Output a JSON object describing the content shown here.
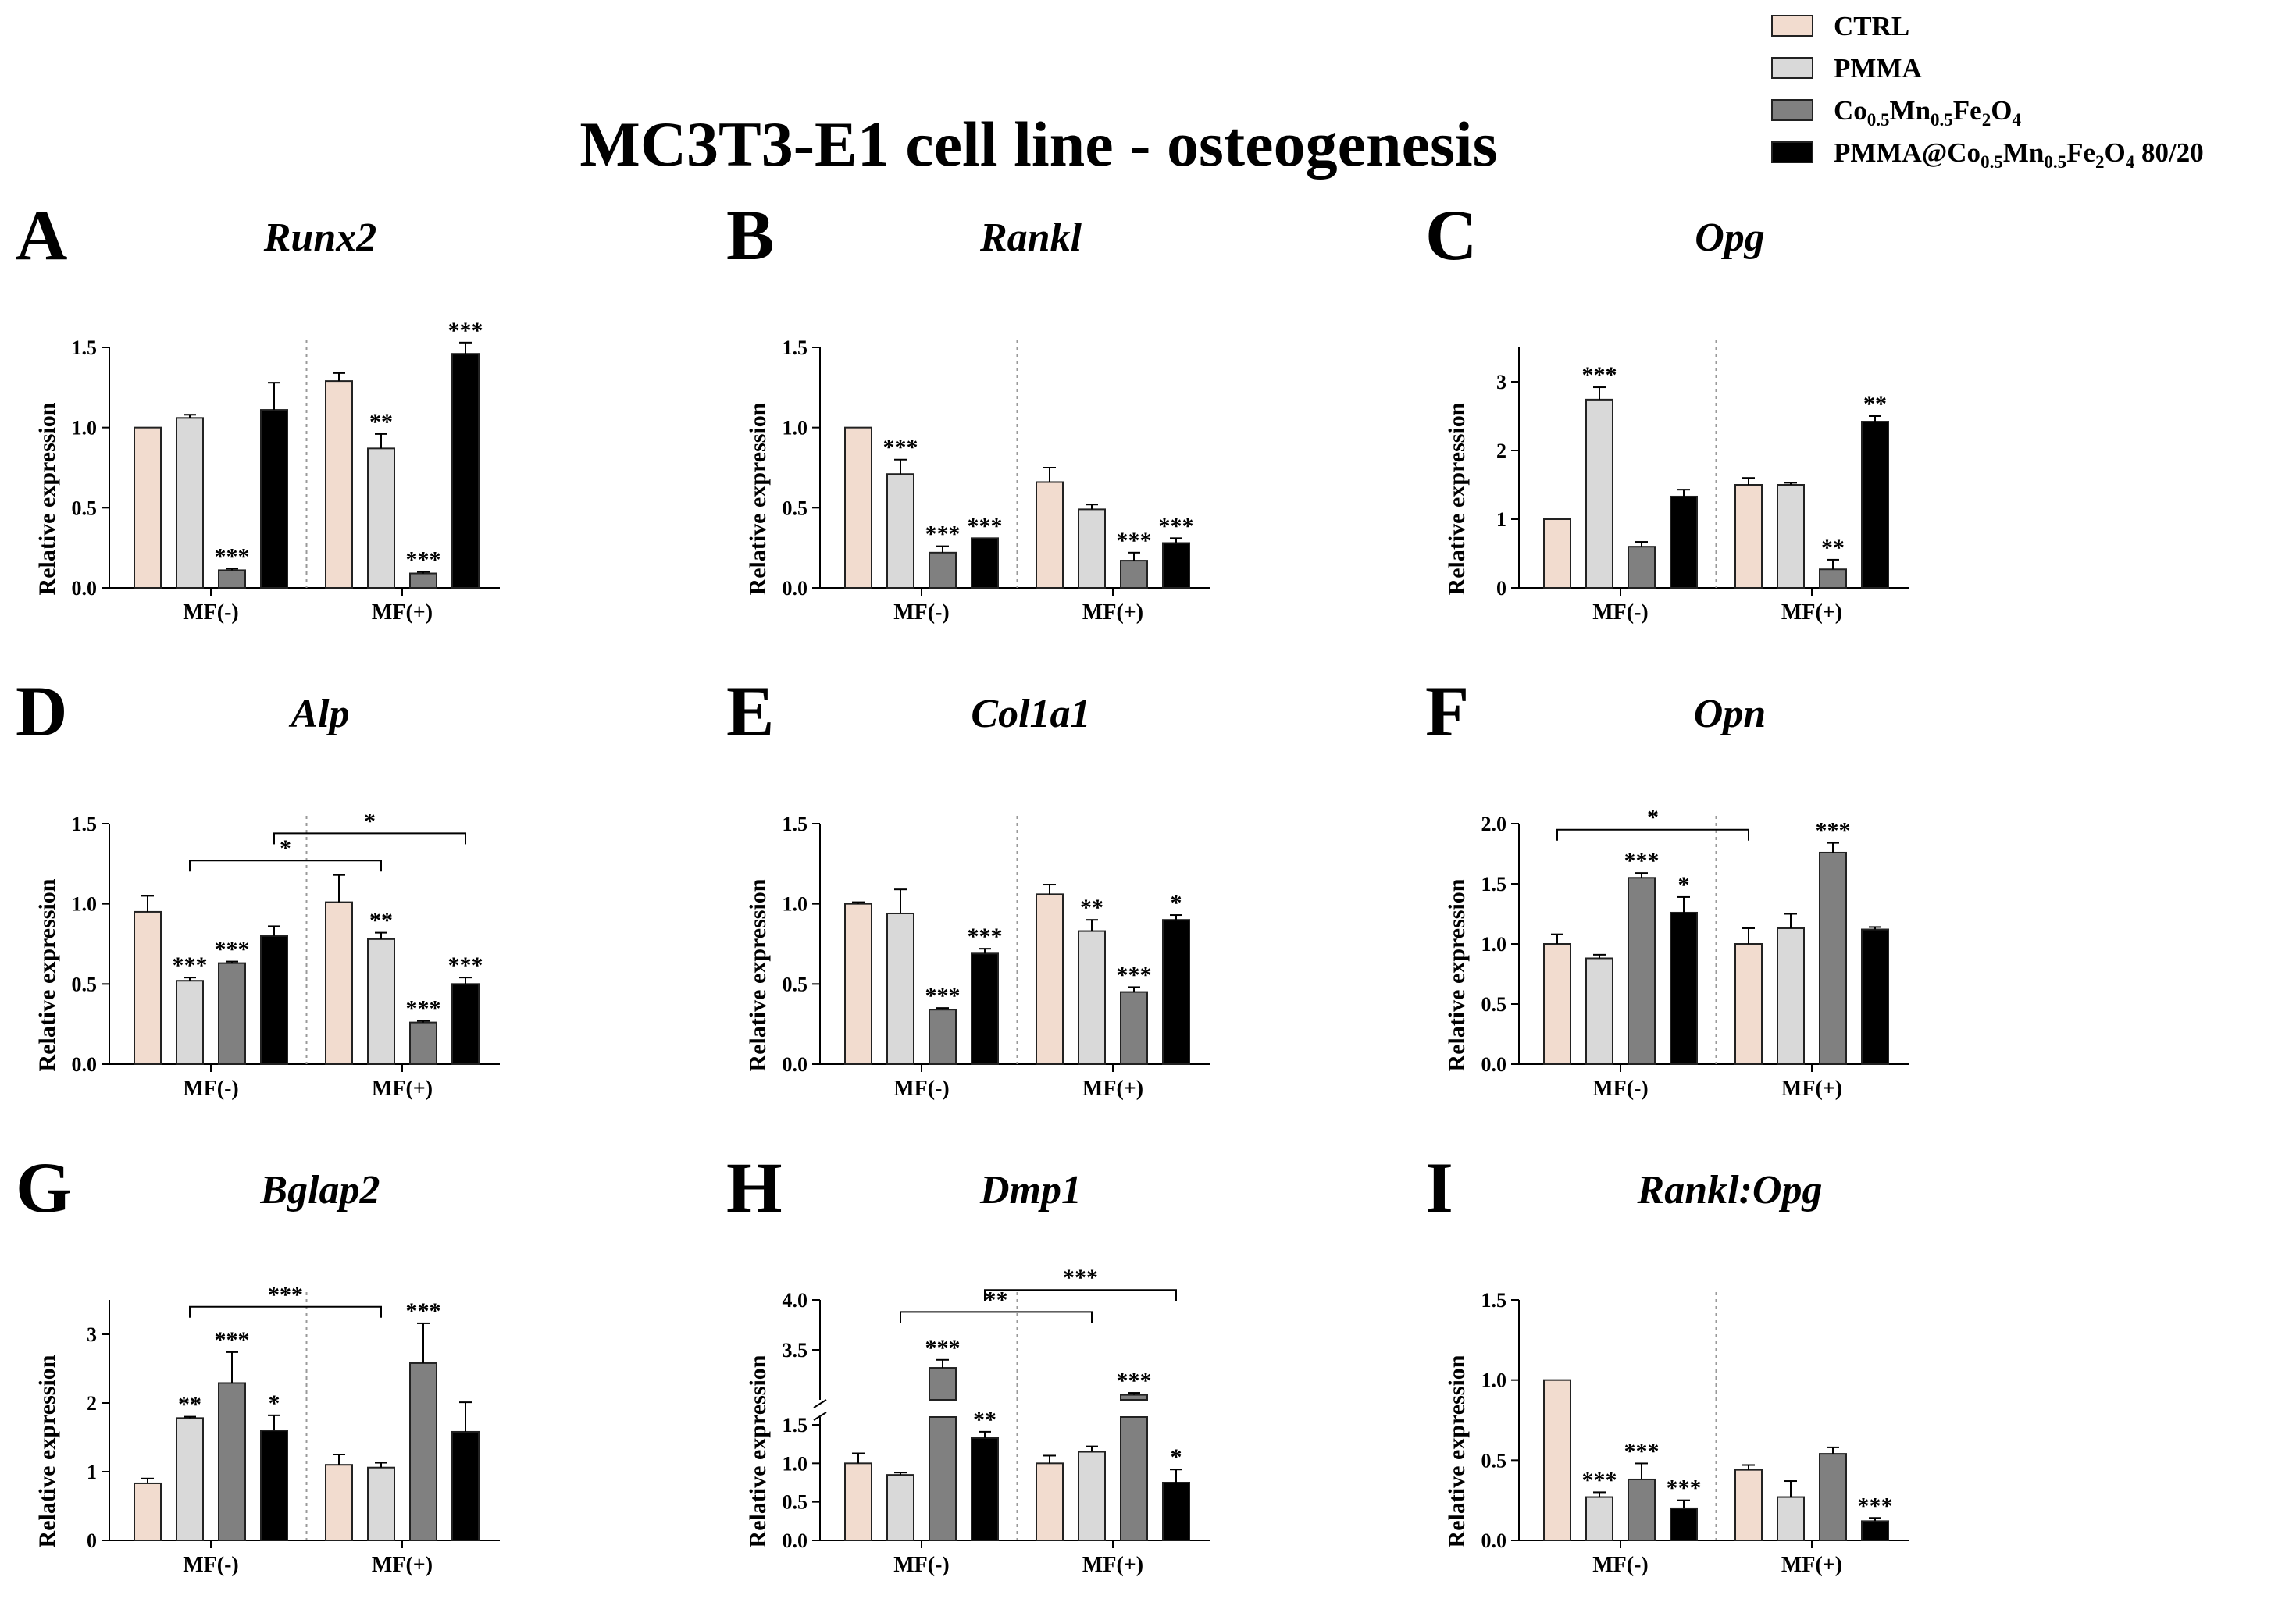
{
  "title": "MC3T3-E1 cell line - osteogenesis",
  "legend": [
    {
      "label": "CTRL",
      "color": "#f2dccf"
    },
    {
      "label": "PMMA",
      "color": "#d9d9d9"
    },
    {
      "label": "Co0.5Mn0.5Fe2O4",
      "color": "#808080"
    },
    {
      "label": "PMMA@Co0.5Mn0.5Fe2O4 80/20",
      "color": "#000000"
    }
  ],
  "chart_data": [
    {
      "id": "A",
      "type": "bar",
      "title": "Runx2",
      "ylabel": "Relative expression",
      "ylim": [
        0,
        1.5
      ],
      "yticks": [
        "0.0",
        "0.5",
        "1.0",
        "1.5"
      ],
      "groups": [
        "MF(-)",
        "MF(+)"
      ],
      "series": [
        {
          "name": "CTRL",
          "values": [
            1.0,
            1.29
          ],
          "errors": [
            0.0,
            0.05
          ],
          "sig": [
            "",
            ""
          ]
        },
        {
          "name": "PMMA",
          "values": [
            1.06,
            0.87
          ],
          "errors": [
            0.02,
            0.09
          ],
          "sig": [
            "",
            "**"
          ]
        },
        {
          "name": "Co0.5Mn0.5Fe2O4",
          "values": [
            0.11,
            0.09
          ],
          "errors": [
            0.01,
            0.01
          ],
          "sig": [
            "***",
            "***"
          ]
        },
        {
          "name": "PMMA@Co0.5Mn0.5Fe2O4 80/20",
          "values": [
            1.11,
            1.46
          ],
          "errors": [
            0.17,
            0.07
          ],
          "sig": [
            "",
            "***"
          ]
        }
      ],
      "brackets": []
    },
    {
      "id": "B",
      "type": "bar",
      "title": "Rankl",
      "ylabel": "Relative expression",
      "ylim": [
        0,
        1.5
      ],
      "yticks": [
        "0.0",
        "0.5",
        "1.0",
        "1.5"
      ],
      "groups": [
        "MF(-)",
        "MF(+)"
      ],
      "series": [
        {
          "name": "CTRL",
          "values": [
            1.0,
            0.66
          ],
          "errors": [
            0.0,
            0.09
          ],
          "sig": [
            "",
            ""
          ]
        },
        {
          "name": "PMMA",
          "values": [
            0.71,
            0.49
          ],
          "errors": [
            0.09,
            0.03
          ],
          "sig": [
            "***",
            ""
          ]
        },
        {
          "name": "Co0.5Mn0.5Fe2O4",
          "values": [
            0.22,
            0.17
          ],
          "errors": [
            0.04,
            0.05
          ],
          "sig": [
            "***",
            "***"
          ]
        },
        {
          "name": "PMMA@Co0.5Mn0.5Fe2O4 80/20",
          "values": [
            0.31,
            0.28
          ],
          "errors": [
            0.0,
            0.03
          ],
          "sig": [
            "***",
            "***"
          ]
        }
      ],
      "brackets": []
    },
    {
      "id": "C",
      "type": "bar",
      "title": "Opg",
      "ylabel": "Relative expression",
      "ylim": [
        0,
        3.5
      ],
      "yticks": [
        "0",
        "1",
        "2",
        "3"
      ],
      "groups": [
        "MF(-)",
        "MF(+)"
      ],
      "series": [
        {
          "name": "CTRL",
          "values": [
            1.0,
            1.5
          ],
          "errors": [
            0.0,
            0.1
          ],
          "sig": [
            "",
            ""
          ]
        },
        {
          "name": "PMMA",
          "values": [
            2.74,
            1.5
          ],
          "errors": [
            0.18,
            0.03
          ],
          "sig": [
            "***",
            ""
          ]
        },
        {
          "name": "Co0.5Mn0.5Fe2O4",
          "values": [
            0.6,
            0.27
          ],
          "errors": [
            0.07,
            0.14
          ],
          "sig": [
            "",
            "**"
          ]
        },
        {
          "name": "PMMA@Co0.5Mn0.5Fe2O4 80/20",
          "values": [
            1.33,
            2.42
          ],
          "errors": [
            0.1,
            0.08
          ],
          "sig": [
            "",
            "**"
          ]
        }
      ],
      "brackets": []
    },
    {
      "id": "D",
      "type": "bar",
      "title": "Alp",
      "ylabel": "Relative expression",
      "ylim": [
        0,
        1.5
      ],
      "yticks": [
        "0.0",
        "0.5",
        "1.0",
        "1.5"
      ],
      "groups": [
        "MF(-)",
        "MF(+)"
      ],
      "series": [
        {
          "name": "CTRL",
          "values": [
            0.95,
            1.01
          ],
          "errors": [
            0.1,
            0.17
          ],
          "sig": [
            "",
            ""
          ]
        },
        {
          "name": "PMMA",
          "values": [
            0.52,
            0.78
          ],
          "errors": [
            0.02,
            0.04
          ],
          "sig": [
            "***",
            "**"
          ]
        },
        {
          "name": "Co0.5Mn0.5Fe2O4",
          "values": [
            0.63,
            0.26
          ],
          "errors": [
            0.01,
            0.01
          ],
          "sig": [
            "***",
            "***"
          ]
        },
        {
          "name": "PMMA@Co0.5Mn0.5Fe2O4 80/20",
          "values": [
            0.8,
            0.5
          ],
          "errors": [
            0.06,
            0.04
          ],
          "sig": [
            "",
            "***"
          ]
        }
      ],
      "brackets": [
        {
          "from": [
            0,
            1
          ],
          "to": [
            1,
            1
          ],
          "y": 1.27,
          "label": "*"
        },
        {
          "from": [
            0,
            3
          ],
          "to": [
            1,
            3
          ],
          "y": 1.44,
          "label": "*"
        }
      ]
    },
    {
      "id": "E",
      "type": "bar",
      "title": "Col1a1",
      "ylabel": "Relative expression",
      "ylim": [
        0,
        1.5
      ],
      "yticks": [
        "0.0",
        "0.5",
        "1.0",
        "1.5"
      ],
      "groups": [
        "MF(-)",
        "MF(+)"
      ],
      "series": [
        {
          "name": "CTRL",
          "values": [
            1.0,
            1.06
          ],
          "errors": [
            0.01,
            0.06
          ],
          "sig": [
            "",
            ""
          ]
        },
        {
          "name": "PMMA",
          "values": [
            0.94,
            0.83
          ],
          "errors": [
            0.15,
            0.07
          ],
          "sig": [
            "",
            "**"
          ]
        },
        {
          "name": "Co0.5Mn0.5Fe2O4",
          "values": [
            0.34,
            0.45
          ],
          "errors": [
            0.01,
            0.03
          ],
          "sig": [
            "***",
            "***"
          ]
        },
        {
          "name": "PMMA@Co0.5Mn0.5Fe2O4 80/20",
          "values": [
            0.69,
            0.9
          ],
          "errors": [
            0.03,
            0.03
          ],
          "sig": [
            "***",
            "*"
          ]
        }
      ],
      "brackets": []
    },
    {
      "id": "F",
      "type": "bar",
      "title": "Opn",
      "ylabel": "Relative expression",
      "ylim": [
        0,
        2.0
      ],
      "yticks": [
        "0.0",
        "0.5",
        "1.0",
        "1.5",
        "2.0"
      ],
      "groups": [
        "MF(-)",
        "MF(+)"
      ],
      "series": [
        {
          "name": "CTRL",
          "values": [
            1.0,
            1.0
          ],
          "errors": [
            0.08,
            0.13
          ],
          "sig": [
            "",
            ""
          ]
        },
        {
          "name": "PMMA",
          "values": [
            0.88,
            1.13
          ],
          "errors": [
            0.03,
            0.12
          ],
          "sig": [
            "",
            ""
          ]
        },
        {
          "name": "Co0.5Mn0.5Fe2O4",
          "values": [
            1.55,
            1.76
          ],
          "errors": [
            0.04,
            0.08
          ],
          "sig": [
            "***",
            "***"
          ]
        },
        {
          "name": "PMMA@Co0.5Mn0.5Fe2O4 80/20",
          "values": [
            1.26,
            1.12
          ],
          "errors": [
            0.13,
            0.02
          ],
          "sig": [
            "*",
            ""
          ]
        }
      ],
      "brackets": [
        {
          "from": [
            0,
            0
          ],
          "to": [
            1,
            0
          ],
          "y": 1.95,
          "label": "*"
        }
      ]
    },
    {
      "id": "G",
      "type": "bar",
      "title": "Bglap2",
      "ylabel": "Relative expression",
      "ylim": [
        0,
        3.5
      ],
      "yticks": [
        "0",
        "1",
        "2",
        "3"
      ],
      "groups": [
        "MF(-)",
        "MF(+)"
      ],
      "series": [
        {
          "name": "CTRL",
          "values": [
            0.83,
            1.1
          ],
          "errors": [
            0.07,
            0.15
          ],
          "sig": [
            "",
            ""
          ]
        },
        {
          "name": "PMMA",
          "values": [
            1.78,
            1.06
          ],
          "errors": [
            0.02,
            0.07
          ],
          "sig": [
            "**",
            ""
          ]
        },
        {
          "name": "Co0.5Mn0.5Fe2O4",
          "values": [
            2.29,
            2.58
          ],
          "errors": [
            0.45,
            0.58
          ],
          "sig": [
            "***",
            "***"
          ]
        },
        {
          "name": "PMMA@Co0.5Mn0.5Fe2O4 80/20",
          "values": [
            1.6,
            1.58
          ],
          "errors": [
            0.22,
            0.43
          ],
          "sig": [
            "*",
            ""
          ]
        }
      ],
      "brackets": [
        {
          "from": [
            0,
            1
          ],
          "to": [
            1,
            1
          ],
          "y": 3.4,
          "label": "***"
        }
      ]
    },
    {
      "id": "H",
      "type": "bar",
      "title": "Dmp1",
      "ylabel": "Relative expression",
      "broken_axis": true,
      "lower_range": [
        0,
        1.5
      ],
      "upper_range": [
        3.0,
        4.0
      ],
      "yticks": [
        "0.0",
        "0.5",
        "1.0",
        "1.5",
        "3.5",
        "4.0"
      ],
      "groups": [
        "MF(-)",
        "MF(+)"
      ],
      "series": [
        {
          "name": "CTRL",
          "values": [
            1.0,
            1.0
          ],
          "errors": [
            0.13,
            0.1
          ],
          "sig": [
            "",
            ""
          ]
        },
        {
          "name": "PMMA",
          "values": [
            0.85,
            1.15
          ],
          "errors": [
            0.03,
            0.07
          ],
          "sig": [
            "",
            ""
          ]
        },
        {
          "name": "Co0.5Mn0.5Fe2O4",
          "values": [
            3.32,
            3.05
          ],
          "errors": [
            0.08,
            0.02
          ],
          "sig": [
            "***",
            "***"
          ]
        },
        {
          "name": "PMMA@Co0.5Mn0.5Fe2O4 80/20",
          "values": [
            1.33,
            0.75
          ],
          "errors": [
            0.08,
            0.17
          ],
          "sig": [
            "**",
            "*"
          ]
        }
      ],
      "brackets": [
        {
          "from": [
            0,
            1
          ],
          "to": [
            1,
            1
          ],
          "y": 3.88,
          "label": "**"
        },
        {
          "from": [
            0,
            3
          ],
          "to": [
            1,
            3
          ],
          "y": 4.1,
          "label": "***"
        }
      ]
    },
    {
      "id": "I",
      "type": "bar",
      "title": "Rankl:Opg",
      "ylabel": "Relative expression",
      "ylim": [
        0,
        1.5
      ],
      "yticks": [
        "0.0",
        "0.5",
        "1.0",
        "1.5"
      ],
      "groups": [
        "MF(-)",
        "MF(+)"
      ],
      "series": [
        {
          "name": "CTRL",
          "values": [
            1.0,
            0.44
          ],
          "errors": [
            0.0,
            0.03
          ],
          "sig": [
            "",
            ""
          ]
        },
        {
          "name": "PMMA",
          "values": [
            0.27,
            0.27
          ],
          "errors": [
            0.03,
            0.1
          ],
          "sig": [
            "***",
            ""
          ]
        },
        {
          "name": "Co0.5Mn0.5Fe2O4",
          "values": [
            0.38,
            0.54
          ],
          "errors": [
            0.1,
            0.04
          ],
          "sig": [
            "***",
            ""
          ]
        },
        {
          "name": "PMMA@Co0.5Mn0.5Fe2O4 80/20",
          "values": [
            0.2,
            0.12
          ],
          "errors": [
            0.05,
            0.02
          ],
          "sig": [
            "***",
            "***"
          ]
        }
      ],
      "brackets": []
    }
  ]
}
